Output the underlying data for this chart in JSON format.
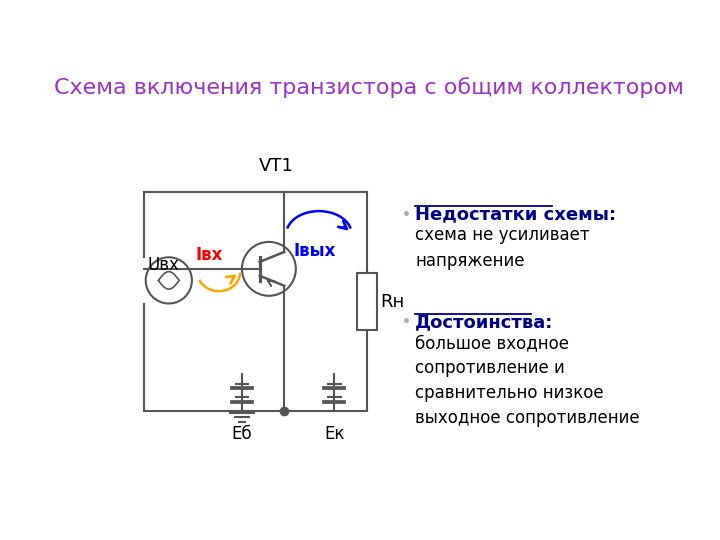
{
  "title": "Схема включения транзистора с общим коллектором",
  "title_color": "#9932CC",
  "title_fontsize": 16,
  "background_color": "#ffffff",
  "circuit_color": "#555555",
  "label_VT1": "VT1",
  "label_Ubx": "Uвх",
  "label_Ibx": "Iвх",
  "label_Ibyx": "Iвых",
  "label_Eb": "Еб",
  "label_Ek": "Ек",
  "label_Rh": "Rн",
  "text_nedostatki_header": "Недостатки схемы:",
  "text_nedostatki_body": "схема не усиливает\nнапряжение",
  "text_dostoinstva_header": "Достоинства:",
  "text_dostoinstva_body": "большое входное\nсопротивление и\nсравнительно низкое\nвыходное сопротивление",
  "header_color": "#00008B",
  "body_color": "#000000",
  "ibx_color": "#FF0000",
  "ibx_arrow_color": "#FFA500",
  "ibyx_color": "#0000FF",
  "ibyx_arrow_color": "#0000FF"
}
